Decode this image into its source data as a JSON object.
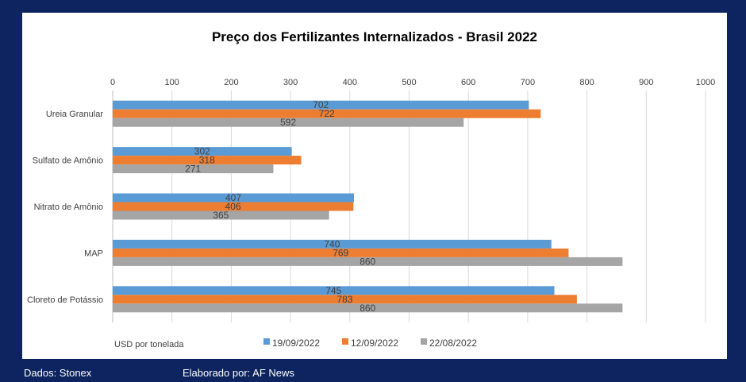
{
  "footer": {
    "source": "Dados: Stonex",
    "credit": "Elaborado por: AF News"
  },
  "colors": {
    "background": "#0d2460",
    "series": [
      "#5b9bd5",
      "#ed7d31",
      "#a5a5a5"
    ],
    "grid": "#d9d9d9"
  },
  "chart_data": {
    "type": "bar",
    "orientation": "horizontal",
    "title": "Preço dos Fertilizantes Internalizados  - Brasil 2022",
    "xlabel": "USD por tonelada",
    "ylabel": "",
    "xlim": [
      0,
      1000
    ],
    "ticks": [
      "0",
      "100",
      "200",
      "300",
      "400",
      "500",
      "600",
      "700",
      "800",
      "900",
      "1000"
    ],
    "grid": true,
    "legend": "bottom",
    "categories": [
      "Ureia Granular",
      "Sulfato de Amônio",
      "Nitrato de Amônio",
      "MAP",
      "Cloreto de Potássio"
    ],
    "series": [
      {
        "name": "19/09/2022",
        "color": "#5b9bd5",
        "values": [
          702,
          302,
          407,
          740,
          745
        ]
      },
      {
        "name": "12/09/2022",
        "color": "#ed7d31",
        "values": [
          722,
          318,
          406,
          769,
          783
        ]
      },
      {
        "name": "22/08/2022",
        "color": "#a5a5a5",
        "values": [
          592,
          271,
          365,
          860,
          860
        ]
      }
    ]
  }
}
